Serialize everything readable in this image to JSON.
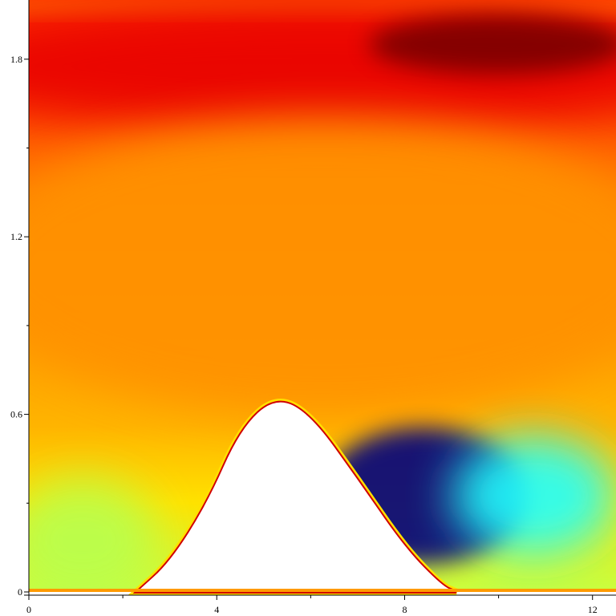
{
  "chart_data": {
    "type": "heatmap",
    "title": "",
    "xlabel": "",
    "ylabel": "",
    "xlim": [
      0,
      12.5
    ],
    "ylim": [
      0,
      2.0
    ],
    "x_ticks": [
      0,
      4,
      8,
      12
    ],
    "y_ticks": [
      0,
      0.6,
      1.2,
      1.8
    ],
    "x_tick_labels": [
      "0",
      "4",
      "8",
      "12"
    ],
    "y_tick_labels": [
      "0",
      "0.6",
      "1.2",
      "1.8"
    ],
    "colormap": "jet",
    "colormap_stops": [
      "#00007f",
      "#0000ff",
      "#00ffff",
      "#ffff00",
      "#ff8c00",
      "#ff0000",
      "#7f0000"
    ],
    "obstacle": {
      "shape": "hill",
      "color": "#ffffff",
      "points": [
        [
          2.3,
          0
        ],
        [
          3.0,
          0.1
        ],
        [
          3.8,
          0.3
        ],
        [
          4.5,
          0.55
        ],
        [
          5.25,
          0.66
        ],
        [
          6.0,
          0.6
        ],
        [
          7.0,
          0.38
        ],
        [
          8.0,
          0.15
        ],
        [
          8.8,
          0.02
        ],
        [
          9.1,
          0
        ]
      ]
    },
    "regions": [
      {
        "name": "wall-jet-top",
        "x": [
          0,
          12.5
        ],
        "y": [
          1.95,
          2.0
        ],
        "level": "orange"
      },
      {
        "name": "upper-high",
        "x": [
          0,
          12.5
        ],
        "y": [
          1.6,
          1.95
        ],
        "level": "red"
      },
      {
        "name": "max-core",
        "x": [
          7.5,
          12.5
        ],
        "y": [
          1.75,
          1.95
        ],
        "level": "dark-red"
      },
      {
        "name": "bulk-flow",
        "x": [
          0,
          12.5
        ],
        "y": [
          0.6,
          1.6
        ],
        "level": "orange"
      },
      {
        "name": "near-wall-inlet",
        "x": [
          0,
          2.3
        ],
        "y": [
          0,
          0.35
        ],
        "level": "yellow-green"
      },
      {
        "name": "separation-bubble",
        "x": [
          5.8,
          11.0
        ],
        "y": [
          0.05,
          0.6
        ],
        "level": "dark-blue"
      },
      {
        "name": "wake",
        "x": [
          9.0,
          12.5
        ],
        "y": [
          0.1,
          0.55
        ],
        "level": "cyan"
      }
    ]
  }
}
